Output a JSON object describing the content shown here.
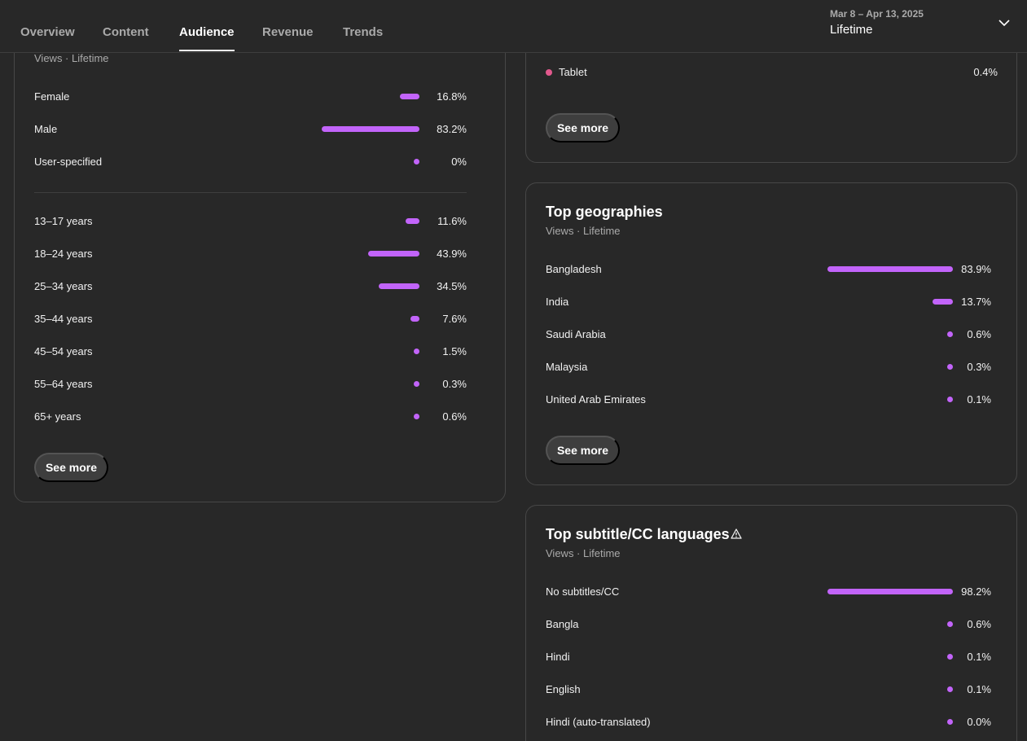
{
  "tabs": [
    {
      "label": "Overview",
      "active": false
    },
    {
      "label": "Content",
      "active": false
    },
    {
      "label": "Audience",
      "active": true
    },
    {
      "label": "Revenue",
      "active": false
    },
    {
      "label": "Trends",
      "active": false
    }
  ],
  "date_range": {
    "caption": "Mar 8 – Apr 13, 2025",
    "value": "Lifetime"
  },
  "colors": {
    "accent_bar": "#c264fa",
    "tablet_dot": "#e2598d",
    "background": "#282828"
  },
  "demographics": {
    "subtitle": "Views · Lifetime",
    "gender": [
      {
        "label": "Female",
        "value": "16.8%",
        "pct": 16.8
      },
      {
        "label": "Male",
        "value": "83.2%",
        "pct": 83.2
      },
      {
        "label": "User-specified",
        "value": "0%",
        "pct": 0
      }
    ],
    "age": [
      {
        "label": "13–17 years",
        "value": "11.6%",
        "pct": 11.6
      },
      {
        "label": "18–24 years",
        "value": "43.9%",
        "pct": 43.9
      },
      {
        "label": "25–34 years",
        "value": "34.5%",
        "pct": 34.5
      },
      {
        "label": "35–44 years",
        "value": "7.6%",
        "pct": 7.6
      },
      {
        "label": "45–54 years",
        "value": "1.5%",
        "pct": 1.5
      },
      {
        "label": "55–64 years",
        "value": "0.3%",
        "pct": 0.3
      },
      {
        "label": "65+ years",
        "value": "0.6%",
        "pct": 0.6
      }
    ],
    "see_more": "See more"
  },
  "devices": {
    "rows": [
      {
        "label": "Tablet",
        "value": "0.4%"
      }
    ],
    "see_more": "See more"
  },
  "geographies": {
    "title": "Top geographies",
    "subtitle": "Views · Lifetime",
    "rows": [
      {
        "label": "Bangladesh",
        "value": "83.9%",
        "pct": 83.9
      },
      {
        "label": "India",
        "value": "13.7%",
        "pct": 13.7
      },
      {
        "label": "Saudi Arabia",
        "value": "0.6%",
        "pct": 0.6
      },
      {
        "label": "Malaysia",
        "value": "0.3%",
        "pct": 0.3
      },
      {
        "label": "United Arab Emirates",
        "value": "0.1%",
        "pct": 0.1
      }
    ],
    "see_more": "See more"
  },
  "subtitles": {
    "title": "Top subtitle/CC languages",
    "icon": "warning-icon",
    "subtitle": "Views · Lifetime",
    "rows": [
      {
        "label": "No subtitles/CC",
        "value": "98.2%",
        "pct": 98.2
      },
      {
        "label": "Bangla",
        "value": "0.6%",
        "pct": 0.6
      },
      {
        "label": "Hindi",
        "value": "0.1%",
        "pct": 0.1
      },
      {
        "label": "English",
        "value": "0.1%",
        "pct": 0.1
      },
      {
        "label": "Hindi (auto-translated)",
        "value": "0.0%",
        "pct": 0.0
      }
    ]
  }
}
